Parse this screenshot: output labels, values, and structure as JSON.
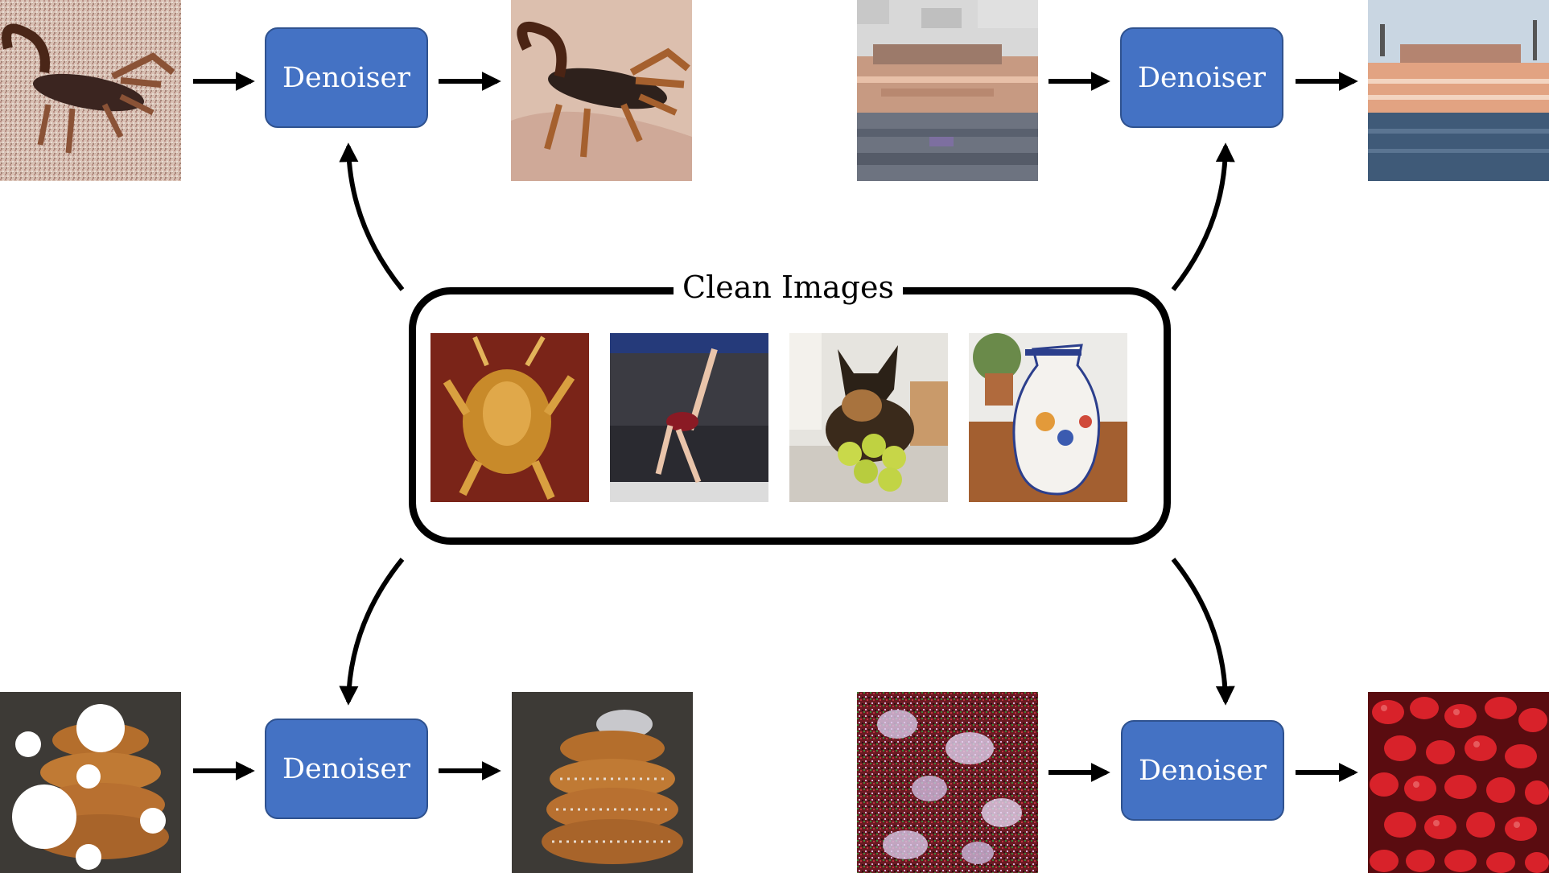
{
  "diagram": {
    "center": {
      "title": "Clean Images",
      "images": [
        {
          "name": "lobster-image"
        },
        {
          "name": "gymnast-image"
        },
        {
          "name": "dog-with-tennis-balls-image"
        },
        {
          "name": "vase-image"
        }
      ]
    },
    "pipelines": [
      {
        "id": "top-left",
        "input": "noisy-scorpion-image",
        "block_label": "Denoiser",
        "output": "clean-scorpion-image"
      },
      {
        "id": "top-right",
        "input": "compressed-ferry-image",
        "block_label": "Denoiser",
        "output": "clean-ferry-image"
      },
      {
        "id": "bottom-left",
        "input": "masked-pretzel-image",
        "block_label": "Denoiser",
        "output": "clean-pretzel-image"
      },
      {
        "id": "bottom-right",
        "input": "noisy-pomegranate-image",
        "block_label": "Denoiser",
        "output": "clean-pomegranate-image"
      }
    ],
    "colors": {
      "denoiser_fill": "#4472c4",
      "denoiser_border": "#2f528f",
      "arrow": "#000000"
    }
  }
}
